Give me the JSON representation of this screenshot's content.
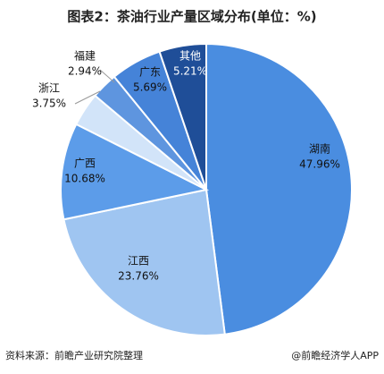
{
  "title": "图表2：茶油行业产量区域分布(单位：%)",
  "chart_data": {
    "type": "pie",
    "categories": [
      "湖南",
      "江西",
      "广西",
      "浙江",
      "福建",
      "广东",
      "其他"
    ],
    "values": [
      47.96,
      23.76,
      10.68,
      3.75,
      2.94,
      5.69,
      5.21
    ],
    "value_labels": [
      "47.96%",
      "23.76%",
      "10.68%",
      "3.75%",
      "2.94%",
      "5.69%",
      "5.21%"
    ],
    "colors": [
      "#4a8de0",
      "#9fc5f1",
      "#5c9ce9",
      "#d2e4f9",
      "#5e95df",
      "#4583d8",
      "#1f4e98"
    ]
  },
  "footer": {
    "source": "资料来源：前瞻产业研究院整理",
    "brand": "@前瞻经济学人APP"
  }
}
